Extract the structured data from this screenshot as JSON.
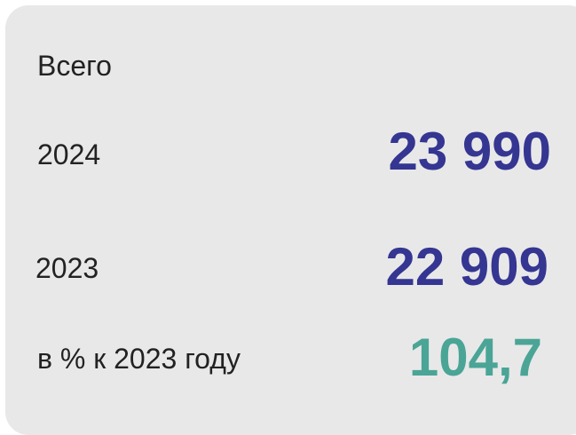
{
  "title": "Всего",
  "rows": [
    {
      "label": "2024",
      "value": "23 990"
    },
    {
      "label": "2023",
      "value": "22 909"
    },
    {
      "label": "в % к 2023 году",
      "value": "104,7"
    }
  ]
}
